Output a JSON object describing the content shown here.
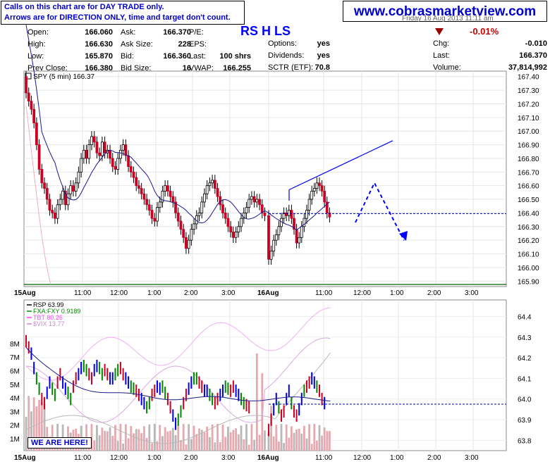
{
  "note": {
    "line1": "Calls on this chart are for DAY TRADE only.",
    "line2": "Arrows are for DIRECTION ONLY, time and target don't count."
  },
  "site": "www.cobrasmarketview.com",
  "header": {
    "date_partial": "Friday 16 Aug 2013 11:11 am",
    "ratings": "RS H LS",
    "col1": [
      [
        "Open:",
        "166.060"
      ],
      [
        "High:",
        "166.630"
      ],
      [
        "Low:",
        "165.870"
      ],
      [
        "Prev Close:",
        "166.380"
      ]
    ],
    "col2": [
      [
        "Ask:",
        "166.370"
      ],
      [
        "Ask Size:",
        "228"
      ],
      [
        "Bid:",
        "166.360"
      ],
      [
        "Bid Size:",
        "16"
      ]
    ],
    "col3": [
      [
        "P/E:",
        ""
      ],
      [
        "EPS:",
        ""
      ],
      [
        "Last:",
        "100 shrs"
      ],
      [
        "VWAP:",
        "166.255"
      ]
    ],
    "col4": [
      [
        "Options:",
        "yes"
      ],
      [
        "Dividends:",
        "yes"
      ],
      [
        "SCTR (ETF):",
        "70.8"
      ]
    ],
    "change_pct": "-0.01%",
    "col5": [
      [
        "Chg:",
        "-0.010"
      ],
      [
        "Last:",
        "166.370"
      ],
      [
        "Volume:",
        "37,814,992"
      ]
    ]
  },
  "here_label": "WE ARE HERE!",
  "colors": {
    "up": "#000000",
    "down": "#cc0022",
    "ma": "#1a1a8c",
    "arrow": "#0000ff",
    "green": "#008800",
    "blue_bar": "#0000ee",
    "volume": "#e8a8b0",
    "volume_gray": "#b8b8b8"
  },
  "chart_data": [
    {
      "type": "candlestick",
      "title": "SPY (5 min) 166.37",
      "x_tick_labels": [
        "15Aug",
        "11:00",
        "12:00",
        "1:00",
        "2:00",
        "3:00",
        "16Aug",
        "11:00",
        "12:00",
        "1:00",
        "2:00",
        "3:00"
      ],
      "y_ticks": [
        165.9,
        166.0,
        166.1,
        166.2,
        166.3,
        166.4,
        166.5,
        166.6,
        166.7,
        166.8,
        166.9,
        167.0,
        167.1,
        167.2,
        167.3,
        167.4
      ],
      "ylim": [
        165.86,
        167.44
      ],
      "hline": 166.395,
      "sessions": [
        {
          "date": "15Aug",
          "close": [
            167.28,
            167.22,
            167.16,
            167.06,
            166.9,
            166.72,
            166.62,
            166.58,
            166.5,
            166.42,
            166.4,
            166.36,
            166.46,
            166.5,
            166.56,
            166.46,
            166.54,
            166.6,
            166.56,
            166.62,
            166.7,
            166.8,
            166.86,
            166.8,
            166.9,
            166.96,
            166.92,
            166.84,
            166.82,
            166.92,
            166.84,
            166.86,
            166.8,
            166.74,
            166.72,
            166.8,
            166.86,
            166.9,
            166.82,
            166.74,
            166.7,
            166.66,
            166.6,
            166.58,
            166.54,
            166.5,
            166.46,
            166.42,
            166.36,
            166.34,
            166.44,
            166.48,
            166.56,
            166.6,
            166.56,
            166.52,
            166.48,
            166.4,
            166.34,
            166.28,
            166.22,
            166.14,
            166.2,
            166.28,
            166.32,
            166.38,
            166.4,
            166.48,
            166.54,
            166.6,
            166.62,
            166.64,
            166.58,
            166.52,
            166.46,
            166.4,
            166.36,
            166.3,
            166.26,
            166.22,
            166.26,
            166.3,
            166.36,
            166.4,
            166.44,
            166.5,
            166.52,
            166.48,
            166.5,
            166.46,
            166.4,
            166.38
          ]
        },
        {
          "date": "16Aug",
          "close": [
            166.06,
            166.12,
            166.2,
            166.24,
            166.3,
            166.36,
            166.4,
            166.38,
            166.42,
            166.36,
            166.28,
            166.18,
            166.22,
            166.3,
            166.36,
            166.42,
            166.5,
            166.56,
            166.58,
            166.62,
            166.6,
            166.56,
            166.48,
            166.4,
            166.37
          ]
        }
      ],
      "trendline": [
        [
          166.57,
          166.93
        ]
      ],
      "projection_arrow": [
        "166.33",
        "166.62",
        "166.22"
      ]
    },
    {
      "type": "line+bar",
      "legend": [
        "RSP 63.99",
        "FXA:FXY 0.9189",
        "TBT 80.26",
        "$VIX 13.77"
      ],
      "series_colors": [
        "#000000",
        "#008800",
        "#ff44ff",
        "#cc88cc"
      ],
      "y_ticks_right": [
        63.8,
        63.9,
        64.0,
        64.1,
        64.2,
        64.3,
        64.4
      ],
      "y_ticks_left": [
        "1M",
        "2M",
        "3M",
        "4M",
        "5M",
        "6M",
        "7M",
        "8M"
      ],
      "hline": 63.975,
      "x_tick_labels": [
        "15Aug",
        "11:00",
        "12:00",
        "1:00",
        "2:00",
        "3:00",
        "16Aug",
        "11:00",
        "12:00",
        "1:00",
        "2:00",
        "3:00"
      ]
    }
  ]
}
